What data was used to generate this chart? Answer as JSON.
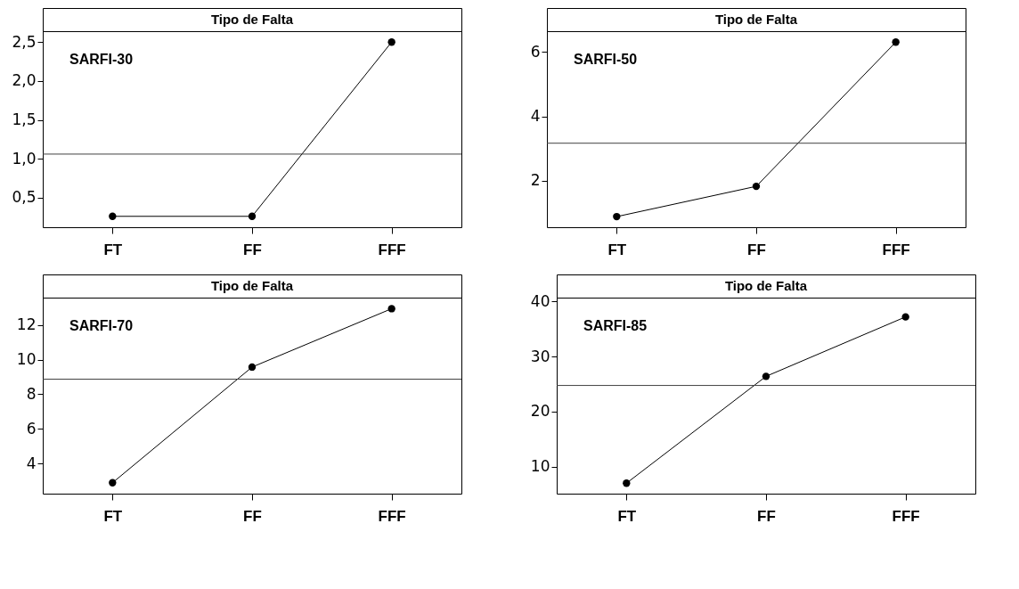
{
  "chart_data": [
    {
      "type": "line",
      "title": "Tipo de Falta",
      "annotations": [
        "SARFI-30"
      ],
      "categories": [
        "FT",
        "FF",
        "FFF"
      ],
      "series": [
        {
          "color": "#000000",
          "values": [
            0.26,
            0.26,
            2.5
          ]
        }
      ],
      "ylim": [
        0.12,
        2.64
      ],
      "yticks": [
        {
          "value": 0.5,
          "label": "0,5"
        },
        {
          "value": 1.0,
          "label": "1,0"
        },
        {
          "value": 1.5,
          "label": "1,5"
        },
        {
          "value": 2.0,
          "label": "2,0"
        },
        {
          "value": 2.5,
          "label": "2,5"
        }
      ],
      "ref_lines": [
        {
          "axis": "y",
          "value": 1.06,
          "color": "#404040"
        }
      ],
      "grid": false,
      "marker": "circle",
      "line_style": "solid"
    },
    {
      "type": "line",
      "title": "Tipo de Falta",
      "annotations": [
        "SARFI-50"
      ],
      "categories": [
        "FT",
        "FF",
        "FFF"
      ],
      "series": [
        {
          "color": "#000000",
          "values": [
            0.89,
            1.83,
            6.31
          ]
        }
      ],
      "ylim": [
        0.56,
        6.65
      ],
      "yticks": [
        2,
        4,
        6
      ],
      "ref_lines": [
        {
          "axis": "y",
          "value": 3.17,
          "color": "#404040"
        }
      ],
      "grid": false,
      "marker": "circle",
      "line_style": "solid"
    },
    {
      "type": "line",
      "title": "Tipo de Falta",
      "annotations": [
        "SARFI-70"
      ],
      "categories": [
        "FT",
        "FF",
        "FFF"
      ],
      "series": [
        {
          "color": "#000000",
          "values": [
            2.89,
            9.57,
            12.94
          ]
        }
      ],
      "ylim": [
        2.26,
        13.58
      ],
      "yticks": [
        4,
        6,
        8,
        10,
        12
      ],
      "ref_lines": [
        {
          "axis": "y",
          "value": 8.87,
          "color": "#404040"
        }
      ],
      "grid": false,
      "marker": "circle",
      "line_style": "solid"
    },
    {
      "type": "line",
      "title": "Tipo de Falta",
      "annotations": [
        "SARFI-85"
      ],
      "categories": [
        "FT",
        "FF",
        "FFF"
      ],
      "series": [
        {
          "color": "#000000",
          "values": [
            7.0,
            26.4,
            37.2
          ]
        }
      ],
      "ylim": [
        5.1,
        40.7
      ],
      "yticks": [
        10,
        20,
        30,
        40
      ],
      "ref_lines": [
        {
          "axis": "y",
          "value": 24.75,
          "color": "#404040"
        }
      ],
      "grid": false,
      "marker": "circle",
      "line_style": "solid"
    }
  ]
}
